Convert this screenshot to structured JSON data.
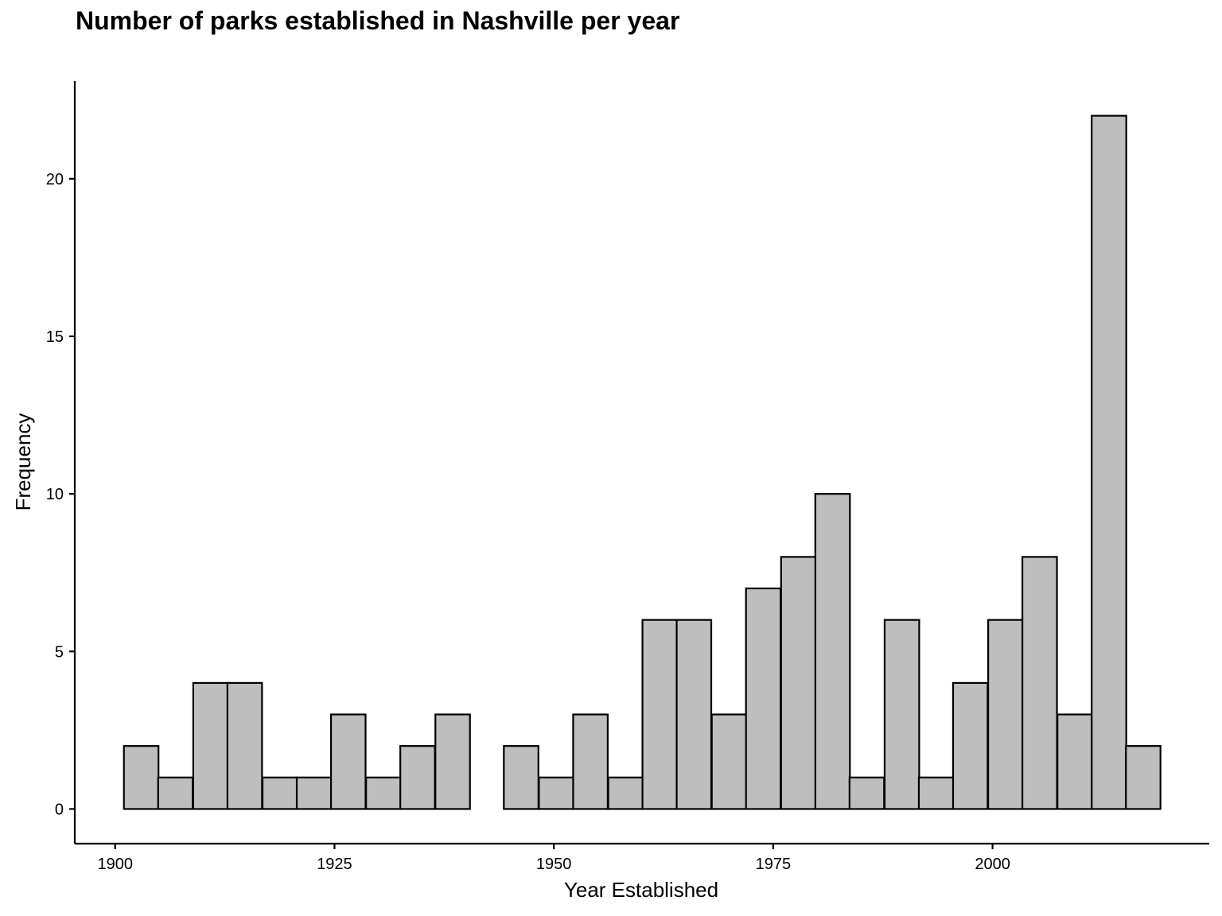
{
  "chart_data": {
    "type": "bar",
    "title": "Number of parks established in Nashville per year",
    "xlabel": "Year Established",
    "ylabel": "Frequency",
    "bin_width": 3.94,
    "bins": [
      {
        "start": 1901.0,
        "count": 2
      },
      {
        "start": 1904.9,
        "count": 1
      },
      {
        "start": 1908.9,
        "count": 4
      },
      {
        "start": 1912.8,
        "count": 4
      },
      {
        "start": 1916.8,
        "count": 1
      },
      {
        "start": 1920.7,
        "count": 1
      },
      {
        "start": 1924.6,
        "count": 3
      },
      {
        "start": 1928.6,
        "count": 1
      },
      {
        "start": 1932.5,
        "count": 2
      },
      {
        "start": 1936.5,
        "count": 3
      },
      {
        "start": 1940.4,
        "count": 0
      },
      {
        "start": 1944.3,
        "count": 2
      },
      {
        "start": 1948.3,
        "count": 1
      },
      {
        "start": 1952.2,
        "count": 3
      },
      {
        "start": 1956.2,
        "count": 1
      },
      {
        "start": 1960.1,
        "count": 6
      },
      {
        "start": 1964.0,
        "count": 6
      },
      {
        "start": 1968.0,
        "count": 3
      },
      {
        "start": 1971.9,
        "count": 7
      },
      {
        "start": 1975.9,
        "count": 8
      },
      {
        "start": 1979.8,
        "count": 10
      },
      {
        "start": 1983.7,
        "count": 1
      },
      {
        "start": 1987.7,
        "count": 6
      },
      {
        "start": 1991.6,
        "count": 1
      },
      {
        "start": 1995.5,
        "count": 4
      },
      {
        "start": 1999.5,
        "count": 6
      },
      {
        "start": 2003.4,
        "count": 8
      },
      {
        "start": 2007.4,
        "count": 3
      },
      {
        "start": 2011.3,
        "count": 22
      },
      {
        "start": 2015.2,
        "count": 2
      }
    ],
    "x_ticks": [
      1900,
      1925,
      1950,
      1975,
      2000
    ],
    "y_ticks": [
      0,
      5,
      10,
      15,
      20
    ],
    "xlim": [
      1895.4,
      2024.7
    ],
    "ylim": [
      -1.1,
      23.1
    ],
    "bar_fill": "#bebebe",
    "bar_stroke": "#000000",
    "grid": false
  }
}
